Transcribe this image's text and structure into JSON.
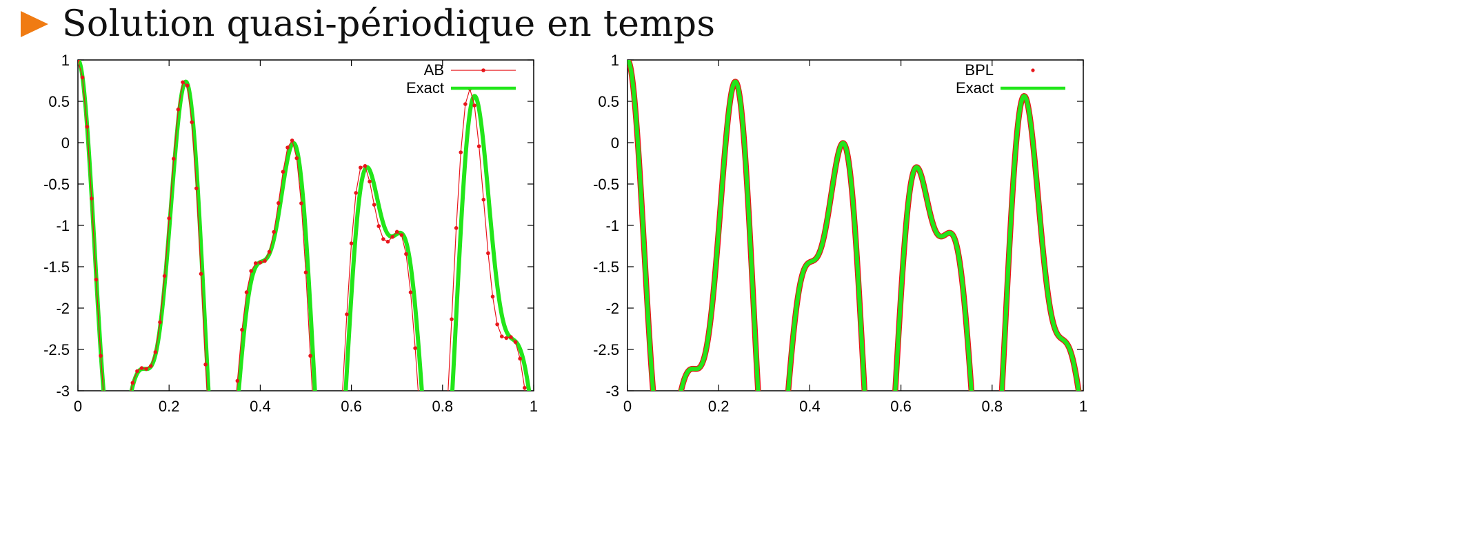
{
  "slide": {
    "title": "Solution quasi-périodique en temps"
  },
  "chart_data": [
    {
      "type": "line",
      "title": "",
      "xlabel": "",
      "ylabel": "",
      "xlim": [
        0,
        1
      ],
      "ylim": [
        -3,
        1
      ],
      "x_ticks": [
        "0",
        "0.2",
        "0.4",
        "0.6",
        "0.8",
        "1"
      ],
      "y_ticks": [
        "1",
        "0.5",
        "0",
        "-0.5",
        "-1",
        "-1.5",
        "-2",
        "-2.5",
        "-3"
      ],
      "grid": false,
      "legend_position": "top-right",
      "series": [
        {
          "name": "AB",
          "style": "line-points",
          "color": "#e8161b",
          "function": "cos(2*pi*8.15*t) + 2*cos(2*pi*4.5*t) - 2",
          "phase_error_per_unit_x": 0.6,
          "amplitude_growth_per_unit_x": 0.12,
          "samples": 100
        },
        {
          "name": "Exact",
          "style": "line",
          "color": "#22e61a",
          "function": "cos(2*pi*8.15*t) + 2*cos(2*pi*4.5*t) - 2",
          "samples": 1200
        }
      ]
    },
    {
      "type": "line",
      "title": "",
      "xlabel": "",
      "ylabel": "",
      "xlim": [
        0,
        1
      ],
      "ylim": [
        -3,
        1
      ],
      "x_ticks": [
        "0",
        "0.2",
        "0.4",
        "0.6",
        "0.8",
        "1"
      ],
      "y_ticks": [
        "1",
        "0.5",
        "0",
        "-0.5",
        "-1",
        "-1.5",
        "-2",
        "-2.5",
        "-3"
      ],
      "grid": false,
      "legend_position": "top-right",
      "series": [
        {
          "name": "BPL",
          "style": "points",
          "color": "#e8161b",
          "function": "cos(2*pi*8.15*t) + 2*cos(2*pi*4.5*t) - 2",
          "samples": 900
        },
        {
          "name": "Exact",
          "style": "line",
          "color": "#22e61a",
          "function": "cos(2*pi*8.15*t) + 2*cos(2*pi*4.5*t) - 2",
          "samples": 1200
        }
      ]
    }
  ]
}
